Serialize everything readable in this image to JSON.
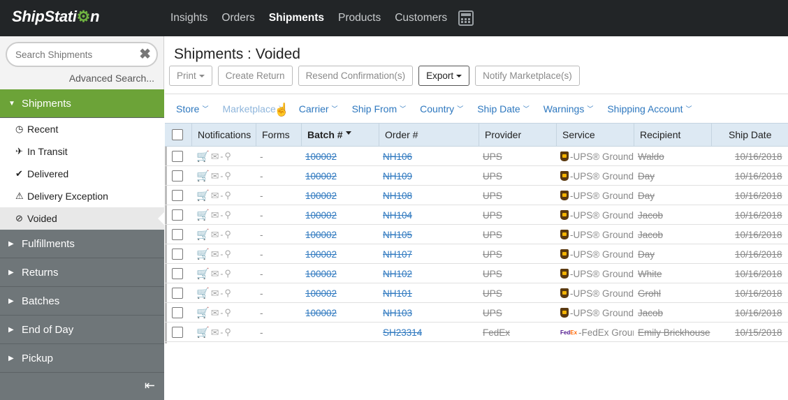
{
  "app": {
    "logo": "ShipStation"
  },
  "nav": {
    "items": [
      "Insights",
      "Orders",
      "Shipments",
      "Products",
      "Customers"
    ],
    "active": "Shipments",
    "calculator_icon": "calculator-icon"
  },
  "sidebar": {
    "search_placeholder": "Search Shipments",
    "advanced_search": "Advanced Search...",
    "shipments_label": "Shipments",
    "items": [
      {
        "label": "Recent",
        "icon": "clock-icon"
      },
      {
        "label": "In Transit",
        "icon": "plane-icon"
      },
      {
        "label": "Delivered",
        "icon": "check-icon"
      },
      {
        "label": "Delivery Exception",
        "icon": "warning-icon"
      },
      {
        "label": "Voided",
        "icon": "void-icon"
      }
    ],
    "sections": [
      "Fulfillments",
      "Returns",
      "Batches",
      "End of Day",
      "Pickup"
    ],
    "accent_color": "#6ca338"
  },
  "main": {
    "title": "Shipments : Voided",
    "toolbar": {
      "print": "Print",
      "create_return": "Create Return",
      "resend": "Resend Confirmation(s)",
      "export": "Export",
      "notify": "Notify Marketplace(s)"
    },
    "filters": [
      "Store",
      "Marketplace",
      "Carrier",
      "Ship From",
      "Country",
      "Ship Date",
      "Warnings",
      "Shipping Account"
    ],
    "table": {
      "headers": {
        "notifications": "Notifications",
        "forms": "Forms",
        "batch": "Batch #",
        "order": "Order #",
        "provider": "Provider",
        "service": "Service",
        "recipient": "Recipient",
        "ship_date": "Ship Date"
      },
      "rows": [
        {
          "forms": "-",
          "batch": "100002",
          "order": "NH106",
          "provider": "UPS",
          "service": "-UPS® Ground",
          "recipient": "Waldo",
          "ship_date": "10/16/2018"
        },
        {
          "forms": "-",
          "batch": "100002",
          "order": "NH109",
          "provider": "UPS",
          "service": "-UPS® Ground",
          "recipient": "Day",
          "ship_date": "10/16/2018"
        },
        {
          "forms": "-",
          "batch": "100002",
          "order": "NH108",
          "provider": "UPS",
          "service": "-UPS® Ground",
          "recipient": "Day",
          "ship_date": "10/16/2018"
        },
        {
          "forms": "-",
          "batch": "100002",
          "order": "NH104",
          "provider": "UPS",
          "service": "-UPS® Ground",
          "recipient": "Jacob",
          "ship_date": "10/16/2018"
        },
        {
          "forms": "-",
          "batch": "100002",
          "order": "NH105",
          "provider": "UPS",
          "service": "-UPS® Ground",
          "recipient": "Jacob",
          "ship_date": "10/16/2018"
        },
        {
          "forms": "-",
          "batch": "100002",
          "order": "NH107",
          "provider": "UPS",
          "service": "-UPS® Ground",
          "recipient": "Day",
          "ship_date": "10/16/2018"
        },
        {
          "forms": "-",
          "batch": "100002",
          "order": "NH102",
          "provider": "UPS",
          "service": "-UPS® Ground",
          "recipient": "White",
          "ship_date": "10/16/2018"
        },
        {
          "forms": "-",
          "batch": "100002",
          "order": "NH101",
          "provider": "UPS",
          "service": "-UPS® Ground",
          "recipient": "Grohl",
          "ship_date": "10/16/2018"
        },
        {
          "forms": "-",
          "batch": "100002",
          "order": "NH103",
          "provider": "UPS",
          "service": "-UPS® Ground",
          "recipient": "Jacob",
          "ship_date": "10/16/2018"
        },
        {
          "forms": "-",
          "batch": "",
          "order": "SH23314",
          "provider": "FedEx",
          "service": "-FedEx Ground®",
          "recipient": "Emily Brickhouse",
          "ship_date": "10/15/2018"
        }
      ]
    }
  }
}
